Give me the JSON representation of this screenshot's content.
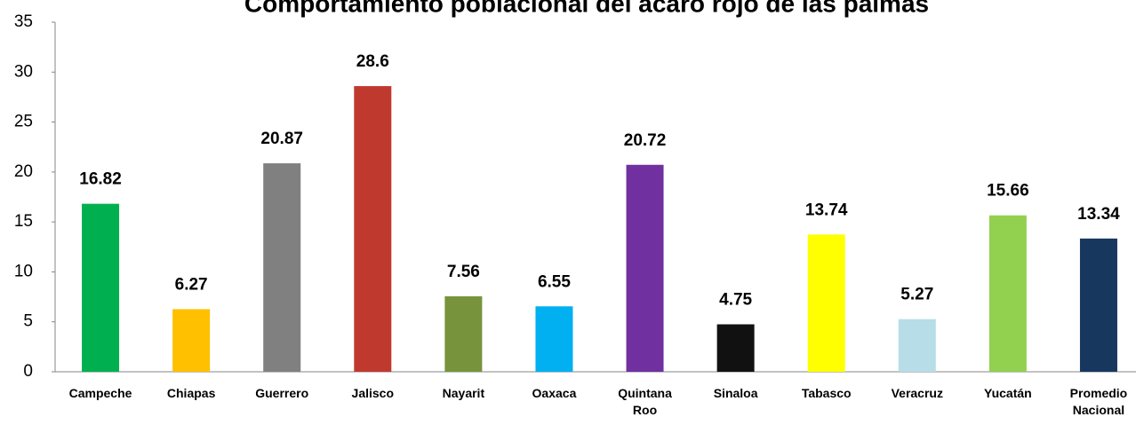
{
  "chart_data": {
    "type": "bar",
    "title": "Comportamiento poblacional del ácaro rojo de las palmas",
    "categories": [
      "Campeche",
      "Chiapas",
      "Guerrero",
      "Jalisco",
      "Nayarit",
      "Oaxaca",
      "Quintana Roo",
      "Sinaloa",
      "Tabasco",
      "Veracruz",
      "Yucatán",
      "Promedio Nacional"
    ],
    "values": [
      16.82,
      6.27,
      20.87,
      28.6,
      7.56,
      6.55,
      20.72,
      4.75,
      13.74,
      5.27,
      15.66,
      13.34
    ],
    "colors": [
      "#00b050",
      "#ffc000",
      "#808080",
      "#c0392f",
      "#77933c",
      "#00b0f0",
      "#7030a0",
      "#111111",
      "#ffff00",
      "#b7dde8",
      "#92d050",
      "#17375e"
    ],
    "ylim": [
      0,
      35
    ],
    "yticks": [
      0,
      5,
      10,
      15,
      20,
      25,
      30,
      35
    ],
    "grid": false
  }
}
